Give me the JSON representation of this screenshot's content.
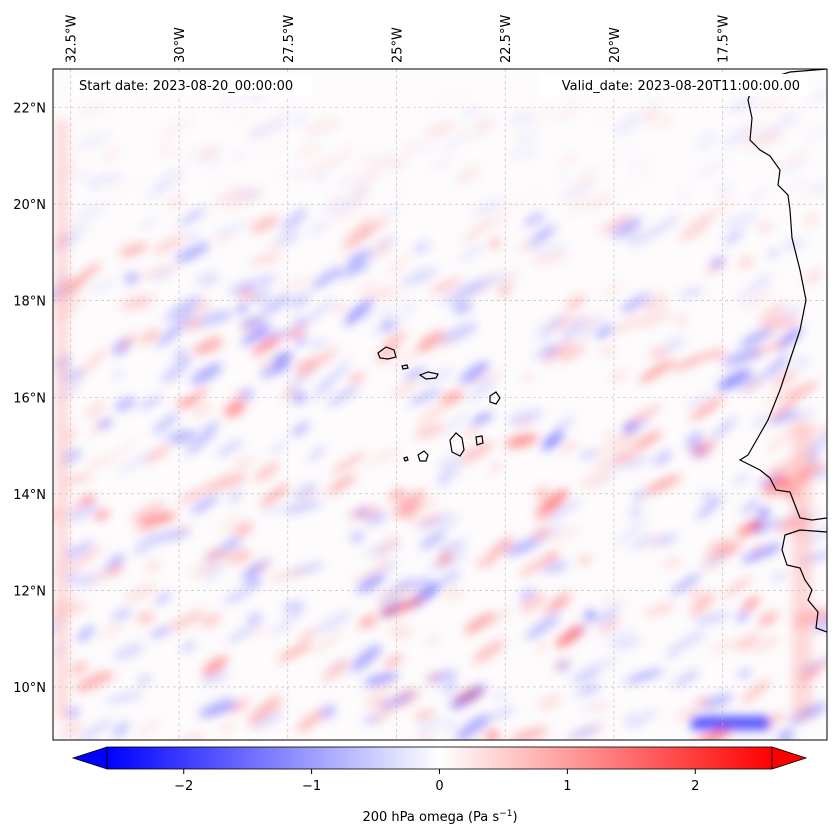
{
  "map": {
    "annotations": {
      "start_label": "Start date: 2023-08-20_00:00:00",
      "valid_label": "Valid_date: 2023-08-20T11:00:00.00"
    },
    "extent": {
      "lon_min": -32.9,
      "lon_max": -15.1,
      "lat_min": 8.9,
      "lat_max": 22.8
    },
    "lon_ticks": [
      {
        "value": -32.5,
        "label": "32.5°W"
      },
      {
        "value": -30.0,
        "label": "30°W"
      },
      {
        "value": -27.5,
        "label": "27.5°W"
      },
      {
        "value": -25.0,
        "label": "25°W"
      },
      {
        "value": -22.5,
        "label": "22.5°W"
      },
      {
        "value": -20.0,
        "label": "20°W"
      },
      {
        "value": -17.5,
        "label": "17.5°W"
      }
    ],
    "lat_ticks": [
      {
        "value": 10,
        "label": "10°N"
      },
      {
        "value": 12,
        "label": "12°N"
      },
      {
        "value": 14,
        "label": "14°N"
      },
      {
        "value": 16,
        "label": "16°N"
      },
      {
        "value": 18,
        "label": "18°N"
      },
      {
        "value": 20,
        "label": "20°N"
      },
      {
        "value": 22,
        "label": "22°N"
      }
    ],
    "gridlines": true,
    "colormap": "bwr"
  },
  "colorbar": {
    "label_text": "200 hPa omega (Pa s",
    "label_sup": "−1",
    "label_close": ")",
    "vmin": -2.6,
    "vmax": 2.6,
    "extend": "both",
    "ticks": [
      {
        "value": -2,
        "label": "−2"
      },
      {
        "value": -1,
        "label": "−1"
      },
      {
        "value": 0,
        "label": "0"
      },
      {
        "value": 1,
        "label": "1"
      },
      {
        "value": 2,
        "label": "2"
      }
    ],
    "colors": {
      "low": "#0000ff",
      "mid": "#ffffff",
      "high": "#ff0000"
    }
  }
}
